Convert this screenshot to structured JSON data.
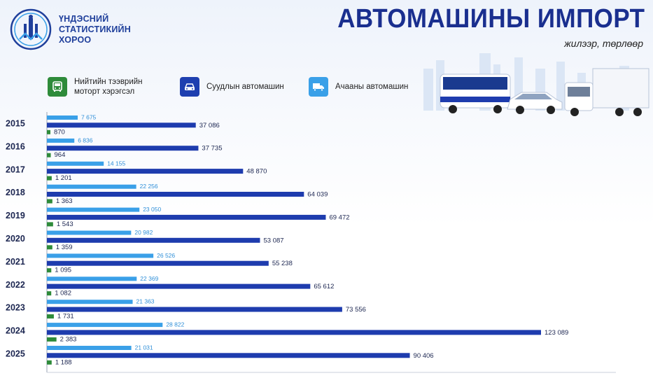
{
  "header": {
    "org_lines": [
      "ҮНДЭСНИЙ",
      "СТАТИСТИКИЙН",
      "ХОРОО"
    ],
    "title": "АВТОМАШИНЫ ИМПОРТ",
    "subtitle": "жилээр, төрлөөр"
  },
  "legend": {
    "bus": {
      "label_line1": "Нийтийн тээврийн",
      "label_line2": "моторт хэрэгсэл",
      "icon": "bus-icon",
      "color": "#2e8b3a"
    },
    "car": {
      "label": "Суудлын автомашин",
      "icon": "car-icon",
      "color": "#1e3fb0"
    },
    "truck": {
      "label": "Ачааны автомашин",
      "icon": "truck-icon",
      "color": "#3aa0e8"
    }
  },
  "colors": {
    "passenger": "#1e3cae",
    "cargo": "#3aa0e8",
    "bus": "#2e8b3a",
    "title": "#1a2f8f"
  },
  "chart_data": {
    "type": "bar",
    "orientation": "horizontal",
    "categories": [
      "2015",
      "2016",
      "2017",
      "2018",
      "2019",
      "2020",
      "2021",
      "2022",
      "2023",
      "2024",
      "2025"
    ],
    "series": [
      {
        "name": "Ачааны автомашин",
        "key": "cargo",
        "values": [
          7675,
          6836,
          14155,
          22256,
          23050,
          20982,
          26526,
          22369,
          21363,
          28822,
          21031
        ],
        "labels": [
          "7 675",
          "6 836",
          "14 155",
          "22 256",
          "23 050",
          "20 982",
          "26 526",
          "22 369",
          "21 363",
          "28 822",
          "21 031"
        ]
      },
      {
        "name": "Суудлын автомашин",
        "key": "passenger",
        "values": [
          37086,
          37735,
          48870,
          64039,
          69472,
          53087,
          55238,
          65612,
          73556,
          123089,
          90406
        ],
        "labels": [
          "37 086",
          "37 735",
          "48 870",
          "64 039",
          "69 472",
          "53 087",
          "55 238",
          "65 612",
          "73 556",
          "123 089",
          "90 406"
        ]
      },
      {
        "name": "Нийтийн тээврийн моторт хэрэгсэл",
        "key": "bus",
        "values": [
          870,
          964,
          1201,
          1363,
          1543,
          1359,
          1095,
          1082,
          1731,
          2383,
          1188
        ],
        "labels": [
          "870",
          "964",
          "1 201",
          "1 363",
          "1 543",
          "1 359",
          "1 095",
          "1 082",
          "1 731",
          "2 383",
          "1 188"
        ]
      }
    ],
    "grid": false,
    "legend_position": "top"
  }
}
